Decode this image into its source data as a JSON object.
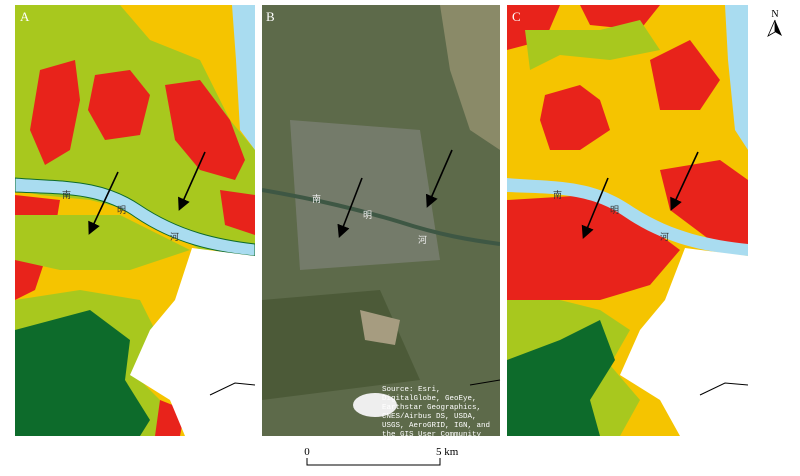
{
  "panels": [
    {
      "label": "A"
    },
    {
      "label": "B"
    },
    {
      "label": "C"
    }
  ],
  "north": "N",
  "scale_bar": {
    "start": "0",
    "end": "5 km"
  },
  "river_label": [
    "南",
    "明",
    "河"
  ],
  "source": "Source: Esri, DigitalGlobe, GeoEye, Earthstar Geographics, CNES/Airbus DS, USDA, USGS, AeroGRID, IGN, and the GIS User Community"
}
